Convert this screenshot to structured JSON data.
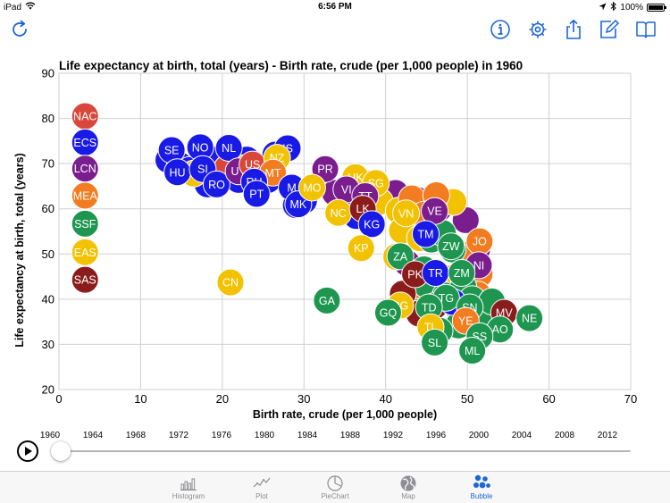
{
  "status_bar": {
    "device": "iPad",
    "time": "6:56 PM",
    "battery": "100%",
    "battery_level": 1.0
  },
  "colors": {
    "accent": "#1b66d8",
    "grid": "#cfcfcf",
    "tab_inactive": "#8e8e93"
  },
  "toolbar": {
    "left": [
      {
        "name": "refresh-button",
        "icon": "refresh-icon"
      }
    ],
    "right": [
      {
        "name": "info-button",
        "icon": "info-icon"
      },
      {
        "name": "settings-button",
        "icon": "gear-icon"
      },
      {
        "name": "share-button",
        "icon": "share-icon"
      },
      {
        "name": "edit-button",
        "icon": "compose-icon"
      },
      {
        "name": "book-button",
        "icon": "book-icon"
      }
    ]
  },
  "chart_data": {
    "type": "scatter",
    "title": "Life expectancy at birth, total (years) - Birth rate, crude (per 1,000 people) in 1960",
    "xlabel": "Birth rate, crude (per 1,000 people)",
    "ylabel": "Life expectancy at birth, total (years)",
    "xlim": [
      0,
      70
    ],
    "ylim": [
      20,
      90
    ],
    "xticks": [
      0,
      10,
      20,
      30,
      40,
      50,
      60,
      70
    ],
    "yticks": [
      20,
      30,
      40,
      50,
      60,
      70,
      80,
      90
    ],
    "grid": true,
    "legend_position": "left",
    "legend": [
      {
        "code": "NAC",
        "color": "#d9473a"
      },
      {
        "code": "ECS",
        "color": "#1a1ae6"
      },
      {
        "code": "LCN",
        "color": "#7a1e8f"
      },
      {
        "code": "MEA",
        "color": "#f47c20"
      },
      {
        "code": "SSF",
        "color": "#1e9650"
      },
      {
        "code": "EAS",
        "color": "#f2c200"
      },
      {
        "code": "SAS",
        "color": "#8a1c1c"
      }
    ],
    "points": [
      {
        "label": "",
        "region": "ECS",
        "x": 13.4,
        "y": 70.8
      },
      {
        "label": "",
        "region": "ECS",
        "x": 14.8,
        "y": 69.6
      },
      {
        "label": "",
        "region": "ECS",
        "x": 16.0,
        "y": 68.6
      },
      {
        "label": "",
        "region": "ECS",
        "x": 18.6,
        "y": 69.8
      },
      {
        "label": "",
        "region": "ECS",
        "x": 19.6,
        "y": 71.0
      },
      {
        "label": "",
        "region": "ECS",
        "x": 23.0,
        "y": 70.9
      },
      {
        "label": "",
        "region": "ECS",
        "x": 25.5,
        "y": 69.2
      },
      {
        "label": "",
        "region": "ECS",
        "x": 26.5,
        "y": 72.0
      },
      {
        "label": "",
        "region": "ECS",
        "x": 18.2,
        "y": 65.4
      },
      {
        "label": "",
        "region": "ECS",
        "x": 22.0,
        "y": 66.4
      },
      {
        "label": "",
        "region": "ECS",
        "x": 29.0,
        "y": 60.8
      },
      {
        "label": "",
        "region": "ECS",
        "x": 30.0,
        "y": 61.8
      },
      {
        "label": "",
        "region": "ECS",
        "x": 24.3,
        "y": 68.6
      },
      {
        "label": "",
        "region": "ECS",
        "x": 25.6,
        "y": 66.4
      },
      {
        "label": "",
        "region": "EAS",
        "x": 16.5,
        "y": 67.8
      },
      {
        "label": "",
        "region": "EAS",
        "x": 22.2,
        "y": 69.0
      },
      {
        "label": "",
        "region": "NAC",
        "x": 20.6,
        "y": 69.0
      },
      {
        "label": "",
        "region": "LCN",
        "x": 33.8,
        "y": 63.5
      },
      {
        "label": "",
        "region": "LCN",
        "x": 36.5,
        "y": 61.0
      },
      {
        "label": "",
        "region": "LCN",
        "x": 41.2,
        "y": 63.5
      },
      {
        "label": "",
        "region": "LCN",
        "x": 43.8,
        "y": 62.0
      },
      {
        "label": "",
        "region": "LCN",
        "x": 46.5,
        "y": 60.0
      },
      {
        "label": "",
        "region": "LCN",
        "x": 49.8,
        "y": 57.5
      },
      {
        "label": "",
        "region": "LCN",
        "x": 51.2,
        "y": 51.0
      },
      {
        "label": "",
        "region": "LCN",
        "x": 42.6,
        "y": 48.0
      },
      {
        "label": "",
        "region": "EAS",
        "x": 38.0,
        "y": 65.6
      },
      {
        "label": "",
        "region": "EAS",
        "x": 39.3,
        "y": 61.6
      },
      {
        "label": "",
        "region": "EAS",
        "x": 41.6,
        "y": 59.6
      },
      {
        "label": "",
        "region": "EAS",
        "x": 43.0,
        "y": 57.4
      },
      {
        "label": "",
        "region": "EAS",
        "x": 42.0,
        "y": 55.2
      },
      {
        "label": "",
        "region": "EAS",
        "x": 48.3,
        "y": 61.5
      },
      {
        "label": "",
        "region": "EAS",
        "x": 44.2,
        "y": 53.5
      },
      {
        "label": "",
        "region": "EAS",
        "x": 41.3,
        "y": 49.4
      },
      {
        "label": "",
        "region": "EAS",
        "x": 43.6,
        "y": 44.8
      },
      {
        "label": "",
        "region": "EAS",
        "x": 47.6,
        "y": 44.6
      },
      {
        "label": "",
        "region": "EAS",
        "x": 46.4,
        "y": 41.8
      },
      {
        "label": "",
        "region": "MEA",
        "x": 43.2,
        "y": 62.3
      },
      {
        "label": "",
        "region": "MEA",
        "x": 46.2,
        "y": 63.0
      },
      {
        "label": "",
        "region": "MEA",
        "x": 44.7,
        "y": 58.7
      },
      {
        "label": "",
        "region": "MEA",
        "x": 50.6,
        "y": 50.2
      },
      {
        "label": "",
        "region": "MEA",
        "x": 49.8,
        "y": 44.8
      },
      {
        "label": "",
        "region": "MEA",
        "x": 51.5,
        "y": 45.5
      },
      {
        "label": "",
        "region": "MEA",
        "x": 51.3,
        "y": 41.0
      },
      {
        "label": "",
        "region": "MEA",
        "x": 44.5,
        "y": 38.5
      },
      {
        "label": "",
        "region": "SSF",
        "x": 45.6,
        "y": 53.2
      },
      {
        "label": "",
        "region": "SSF",
        "x": 47.0,
        "y": 54.6
      },
      {
        "label": "",
        "region": "SSF",
        "x": 48.2,
        "y": 51.0
      },
      {
        "label": "",
        "region": "SSF",
        "x": 44.7,
        "y": 46.6
      },
      {
        "label": "",
        "region": "SSF",
        "x": 45.0,
        "y": 43.1
      },
      {
        "label": "",
        "region": "SSF",
        "x": 47.3,
        "y": 40.8
      },
      {
        "label": "",
        "region": "SSF",
        "x": 48.6,
        "y": 38.6
      },
      {
        "label": "",
        "region": "SSF",
        "x": 49.5,
        "y": 42.8
      },
      {
        "label": "",
        "region": "SSF",
        "x": 50.6,
        "y": 40.0
      },
      {
        "label": "",
        "region": "SSF",
        "x": 49.9,
        "y": 36.6
      },
      {
        "label": "",
        "region": "SSF",
        "x": 48.9,
        "y": 34.2
      },
      {
        "label": "",
        "region": "SSF",
        "x": 46.6,
        "y": 33.0
      },
      {
        "label": "",
        "region": "SSF",
        "x": 52.7,
        "y": 35.8
      },
      {
        "label": "",
        "region": "SSF",
        "x": 44.0,
        "y": 37.2
      },
      {
        "label": "",
        "region": "SSF",
        "x": 53.0,
        "y": 39.5
      },
      {
        "label": "",
        "region": "SAS",
        "x": 42.1,
        "y": 41.2
      },
      {
        "label": "",
        "region": "SAS",
        "x": 44.1,
        "y": 36.8
      },
      {
        "label": "",
        "region": "SAS",
        "x": 46.0,
        "y": 38.5
      },
      {
        "label": "",
        "region": "ECS",
        "x": 48.2,
        "y": 39.4
      },
      {
        "label": "",
        "region": "ECS",
        "x": 36.4,
        "y": 58.4
      },
      {
        "label": "NAC",
        "region": "NAC",
        "x": 3.2,
        "y": 80.5
      },
      {
        "label": "ECS",
        "region": "ECS",
        "x": 3.2,
        "y": 74.7
      },
      {
        "label": "LCN",
        "region": "LCN",
        "x": 3.2,
        "y": 68.9
      },
      {
        "label": "MEA",
        "region": "MEA",
        "x": 3.2,
        "y": 62.9
      },
      {
        "label": "SSF",
        "region": "SSF",
        "x": 3.2,
        "y": 56.7
      },
      {
        "label": "EAS",
        "region": "EAS",
        "x": 3.2,
        "y": 50.4
      },
      {
        "label": "SAS",
        "region": "SAS",
        "x": 3.2,
        "y": 44.3
      },
      {
        "label": "SE",
        "region": "ECS",
        "x": 13.8,
        "y": 73.0
      },
      {
        "label": "NO",
        "region": "ECS",
        "x": 17.3,
        "y": 73.6
      },
      {
        "label": "NL",
        "region": "ECS",
        "x": 20.8,
        "y": 73.5
      },
      {
        "label": "IS",
        "region": "ECS",
        "x": 28.0,
        "y": 73.4
      },
      {
        "label": "HU",
        "region": "ECS",
        "x": 14.5,
        "y": 68.1
      },
      {
        "label": "SI",
        "region": "ECS",
        "x": 17.6,
        "y": 68.8
      },
      {
        "label": "RO",
        "region": "ECS",
        "x": 19.3,
        "y": 65.4
      },
      {
        "label": "UY",
        "region": "LCN",
        "x": 22.0,
        "y": 68.3
      },
      {
        "label": "US",
        "region": "NAC",
        "x": 23.7,
        "y": 69.8
      },
      {
        "label": "NZ",
        "region": "EAS",
        "x": 26.7,
        "y": 71.3
      },
      {
        "label": "MT",
        "region": "MEA",
        "x": 26.2,
        "y": 68.0
      },
      {
        "label": "RU",
        "region": "ECS",
        "x": 23.9,
        "y": 66.0
      },
      {
        "label": "PT",
        "region": "ECS",
        "x": 24.2,
        "y": 63.3
      },
      {
        "label": "M",
        "region": "ECS",
        "x": 28.5,
        "y": 64.7
      },
      {
        "label": "MK",
        "region": "ECS",
        "x": 29.3,
        "y": 61.0
      },
      {
        "label": "PR",
        "region": "LCN",
        "x": 32.6,
        "y": 68.8
      },
      {
        "label": "MO",
        "region": "EAS",
        "x": 31.0,
        "y": 64.7
      },
      {
        "label": "HK",
        "region": "EAS",
        "x": 36.3,
        "y": 67.0
      },
      {
        "label": "VI",
        "region": "LCN",
        "x": 35.2,
        "y": 64.3
      },
      {
        "label": "SG",
        "region": "EAS",
        "x": 38.8,
        "y": 65.7
      },
      {
        "label": "TT",
        "region": "LCN",
        "x": 37.5,
        "y": 62.8
      },
      {
        "label": "NC",
        "region": "EAS",
        "x": 34.2,
        "y": 59.1
      },
      {
        "label": "LK",
        "region": "SAS",
        "x": 37.2,
        "y": 60.0
      },
      {
        "label": "KG",
        "region": "ECS",
        "x": 38.3,
        "y": 56.6
      },
      {
        "label": "VN",
        "region": "EAS",
        "x": 42.5,
        "y": 59.0
      },
      {
        "label": "VE",
        "region": "LCN",
        "x": 46.0,
        "y": 59.5
      },
      {
        "label": "TM",
        "region": "ECS",
        "x": 44.9,
        "y": 54.4
      },
      {
        "label": "KP",
        "region": "EAS",
        "x": 37.0,
        "y": 51.3
      },
      {
        "label": "ZW",
        "region": "SSF",
        "x": 48.0,
        "y": 51.7
      },
      {
        "label": "JO",
        "region": "MEA",
        "x": 51.5,
        "y": 52.8
      },
      {
        "label": "ZA",
        "region": "SSF",
        "x": 41.8,
        "y": 49.5
      },
      {
        "label": "NI",
        "region": "LCN",
        "x": 51.4,
        "y": 47.5
      },
      {
        "label": "PK",
        "region": "SAS",
        "x": 43.6,
        "y": 45.5
      },
      {
        "label": "TR",
        "region": "ECS",
        "x": 46.1,
        "y": 45.8
      },
      {
        "label": "ZM",
        "region": "SSF",
        "x": 49.3,
        "y": 45.8
      },
      {
        "label": "CN",
        "region": "EAS",
        "x": 21.0,
        "y": 43.7
      },
      {
        "label": "GA",
        "region": "SSF",
        "x": 32.8,
        "y": 39.7
      },
      {
        "label": "TG",
        "region": "SSF",
        "x": 47.4,
        "y": 40.3
      },
      {
        "label": "PG",
        "region": "EAS",
        "x": 41.8,
        "y": 38.6
      },
      {
        "label": "GQ",
        "region": "SSF",
        "x": 40.3,
        "y": 37.0
      },
      {
        "label": "TD",
        "region": "SSF",
        "x": 45.3,
        "y": 38.2
      },
      {
        "label": "SN",
        "region": "SSF",
        "x": 50.3,
        "y": 38.2
      },
      {
        "label": "MV",
        "region": "SAS",
        "x": 54.5,
        "y": 37.0
      },
      {
        "label": "NE",
        "region": "SSF",
        "x": 57.6,
        "y": 35.8
      },
      {
        "label": "YE",
        "region": "MEA",
        "x": 49.8,
        "y": 35.2
      },
      {
        "label": "TL",
        "region": "EAS",
        "x": 45.5,
        "y": 33.8
      },
      {
        "label": "AO",
        "region": "SSF",
        "x": 54.0,
        "y": 33.3
      },
      {
        "label": "SS",
        "region": "SSF",
        "x": 51.5,
        "y": 31.8
      },
      {
        "label": "SL",
        "region": "SSF",
        "x": 46.0,
        "y": 30.4
      },
      {
        "label": "ML",
        "region": "SSF",
        "x": 50.6,
        "y": 28.6
      }
    ]
  },
  "timeline": {
    "years": [
      "1960",
      "1964",
      "1968",
      "1972",
      "1976",
      "1980",
      "1984",
      "1988",
      "1992",
      "1996",
      "2000",
      "2004",
      "2008",
      "2012"
    ],
    "current_year": "1960",
    "progress": 0.0
  },
  "tabs": [
    {
      "label": "Histogram",
      "icon": "histogram-icon",
      "active": false
    },
    {
      "label": "Plot",
      "icon": "line-plot-icon",
      "active": false
    },
    {
      "label": "PieChart",
      "icon": "pie-chart-icon",
      "active": false
    },
    {
      "label": "Map",
      "icon": "globe-icon",
      "active": false
    },
    {
      "label": "Bubble",
      "icon": "bubbles-icon",
      "active": true
    }
  ]
}
